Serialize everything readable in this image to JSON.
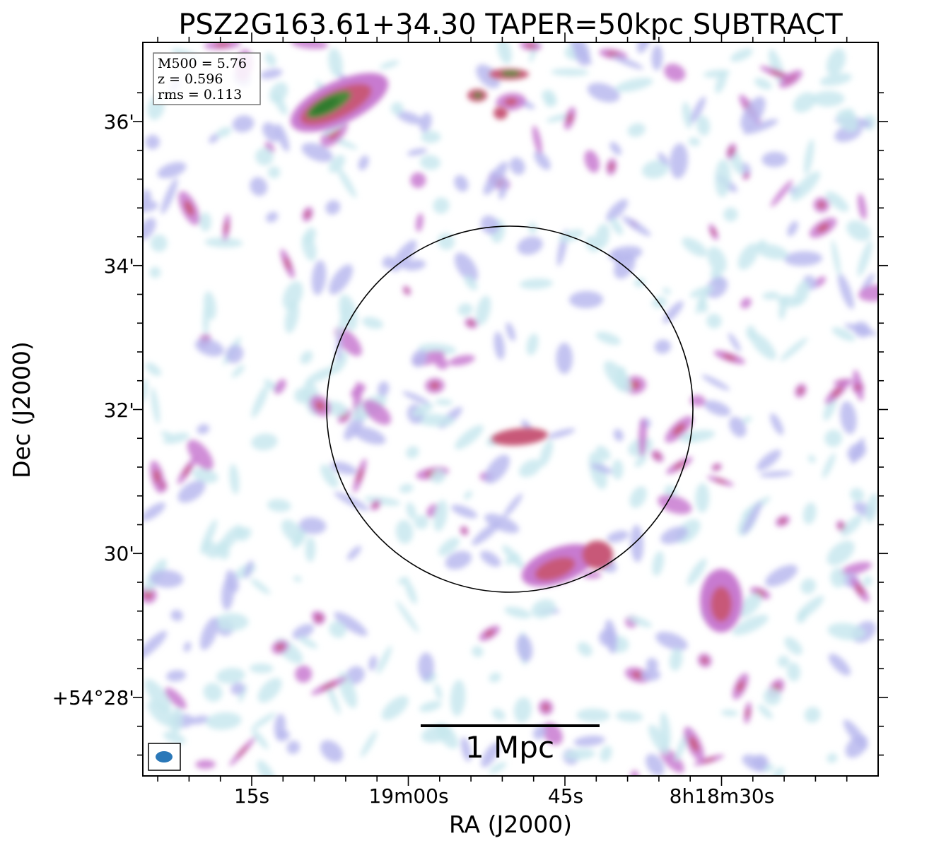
{
  "title": "PSZ2G163.61+34.30 TAPER=50kpc SUBTRACT",
  "info_box": {
    "m500": "M500 = 5.76",
    "z": "z = 0.596",
    "rms": "rms = 0.113"
  },
  "xaxis": {
    "label": "RA (J2000)",
    "ticks": [
      "15s",
      "19m00s",
      "45s",
      "8h18m30s"
    ]
  },
  "yaxis": {
    "label": "Dec (J2000)",
    "ticks": [
      "36'",
      "34'",
      "32'",
      "30'",
      "+54°28'"
    ]
  },
  "scalebar": {
    "label": "1 Mpc"
  },
  "colors": {
    "low": "#c8e8ee",
    "mid_low": "#b8b8ee",
    "mid": "#c87ad0",
    "mid_high": "#c85878",
    "high": "#2e7a2e",
    "beam": "#2a78b8",
    "circle": "#000000"
  }
}
